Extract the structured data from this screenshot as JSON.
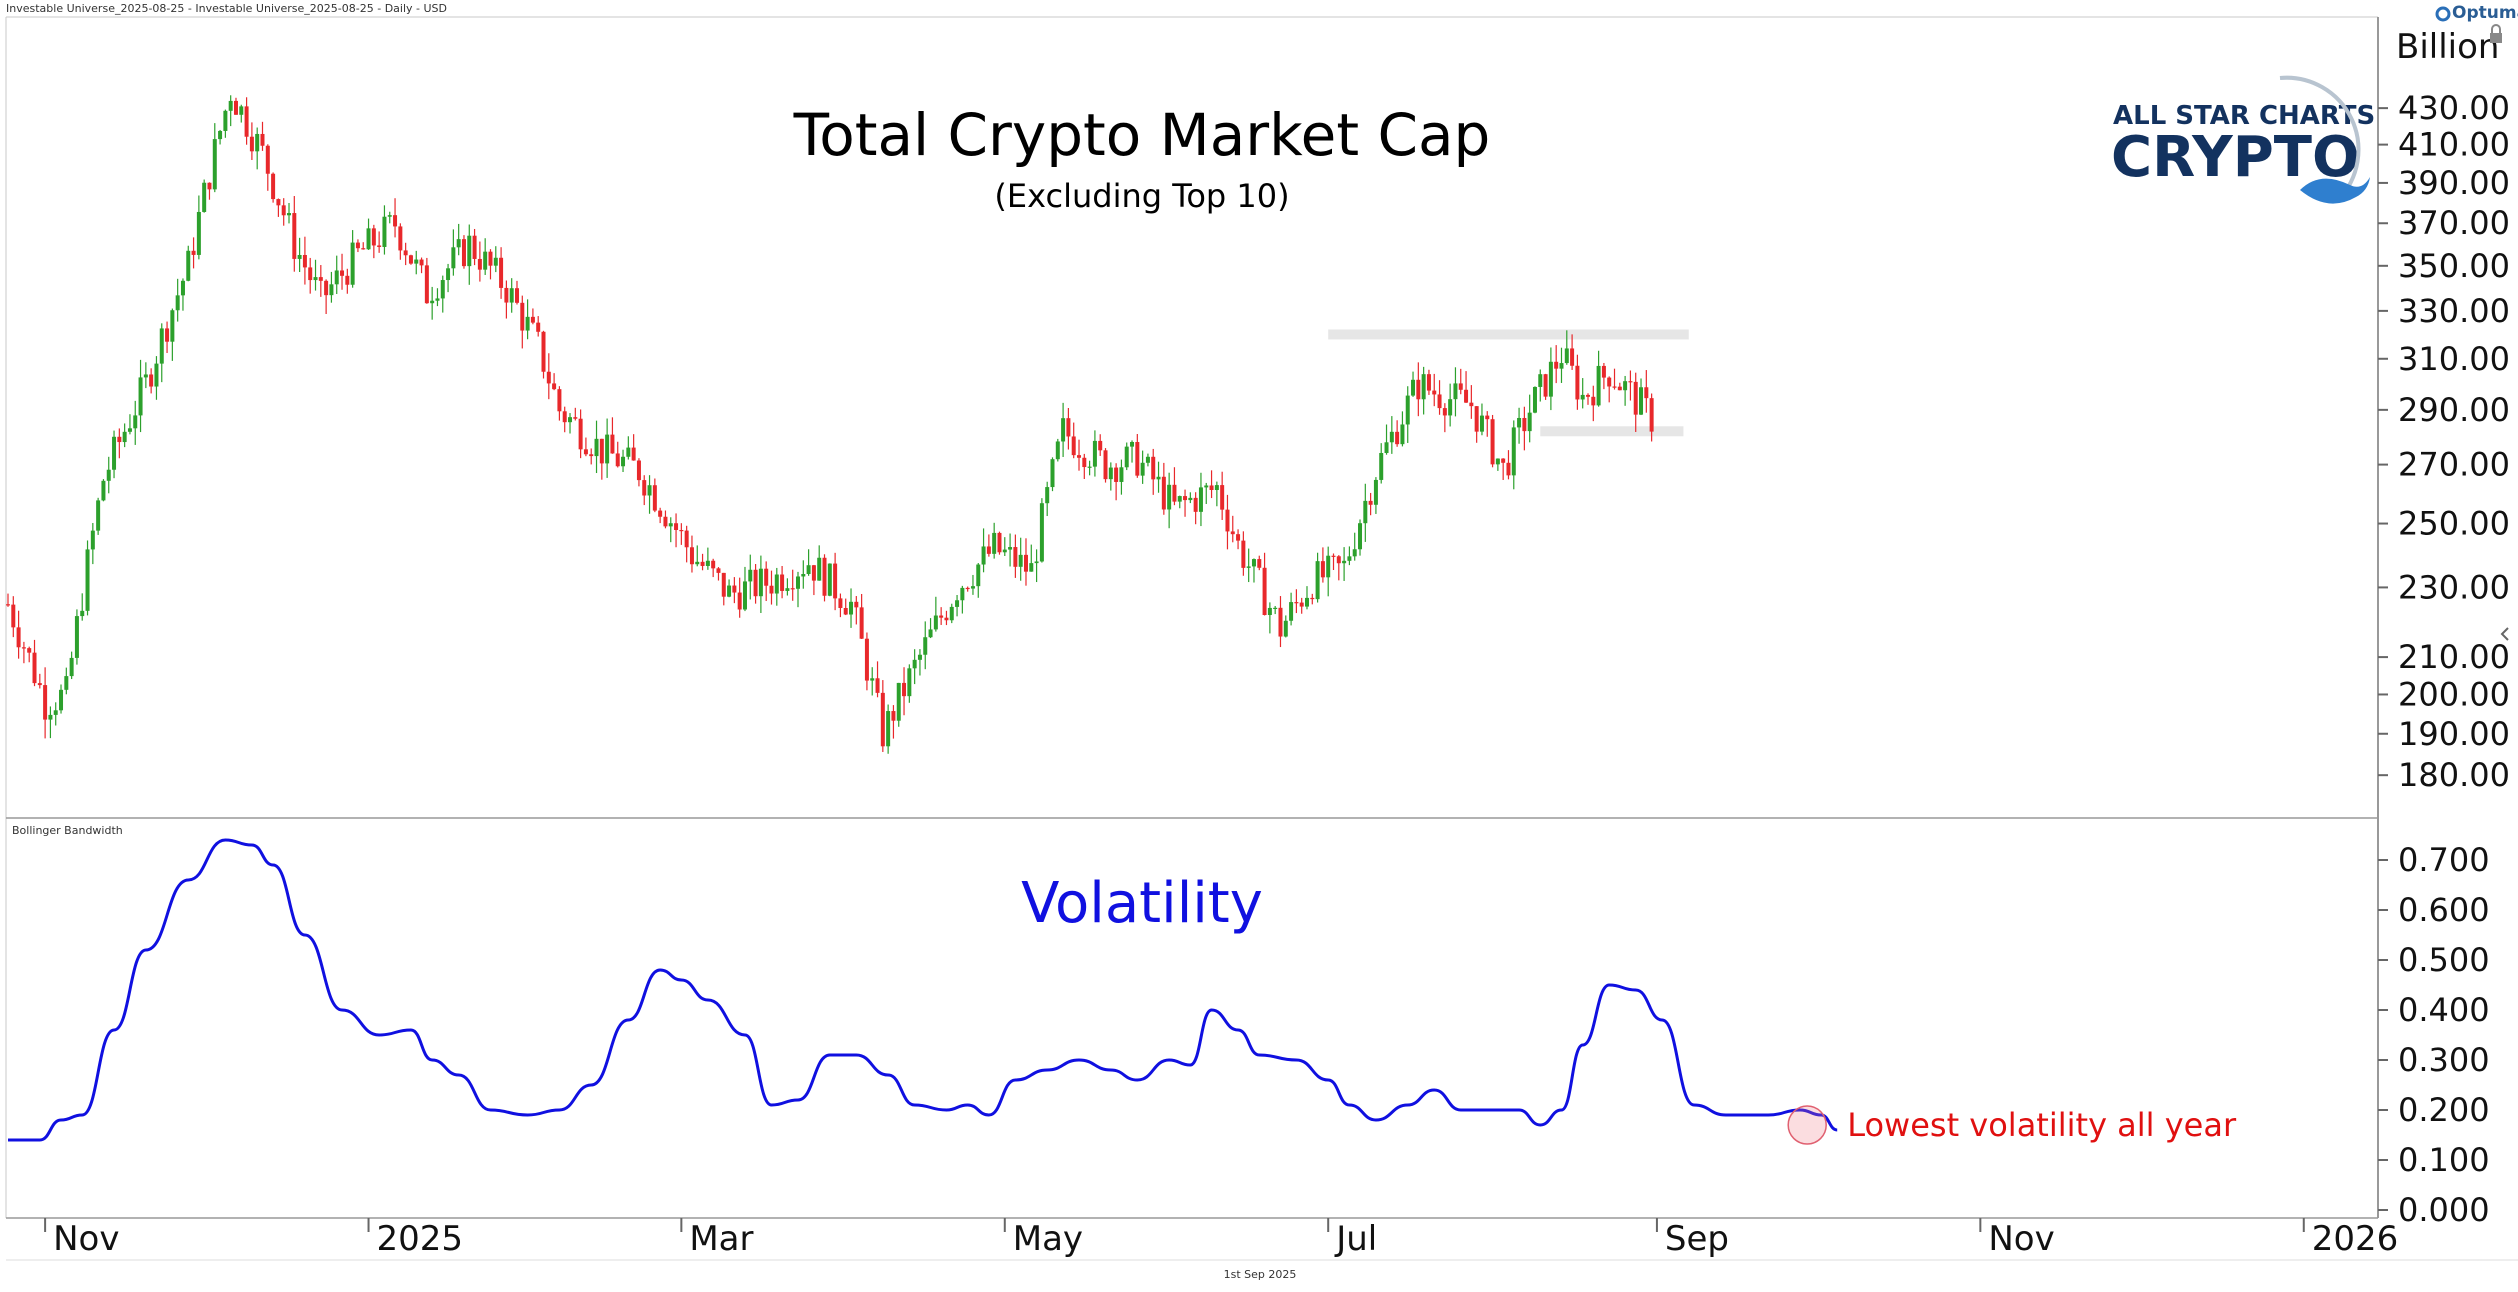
{
  "header": {
    "source_label": "Investable Universe_2025-08-25 - Investable Universe_2025-08-25 - Daily - USD",
    "brand": "Optuma",
    "unit_label": "Billion",
    "footer_date": "1st Sep 2025"
  },
  "logo": {
    "line1": "ALL STAR CHARTS",
    "line2": "CRYPTO"
  },
  "colors": {
    "up": "#2ca02c",
    "down": "#e8282b",
    "volatility_line": "#1010e0",
    "annotation": "#e01010",
    "range_band": "#e6e6e6"
  },
  "chart_data": [
    {
      "type": "candlestick",
      "title": "Total Crypto Market Cap",
      "subtitle": "(Excluding Top 10)",
      "y_unit": "Billion",
      "y_scale": "log",
      "ylim": [
        172,
        470
      ],
      "y_ticks": [
        "430.00",
        "410.00",
        "390.00",
        "370.00",
        "350.00",
        "330.00",
        "310.00",
        "290.00",
        "270.00",
        "250.00",
        "230.00",
        "210.00",
        "200.00",
        "190.00",
        "180.00"
      ],
      "x_range": [
        "2024-10-25",
        "2026-01-15"
      ],
      "x_ticks": [
        {
          "label": "Nov",
          "date": "2024-11-01"
        },
        {
          "label": "2025",
          "date": "2025-01-01"
        },
        {
          "label": "Mar",
          "date": "2025-03-01"
        },
        {
          "label": "May",
          "date": "2025-05-01"
        },
        {
          "label": "Jul",
          "date": "2025-07-01"
        },
        {
          "label": "Sep",
          "date": "2025-09-01"
        },
        {
          "label": "Nov",
          "date": "2025-11-01"
        },
        {
          "label": "2026",
          "date": "2026-01-01"
        }
      ],
      "close_anchors": [
        [
          "2024-10-25",
          225
        ],
        [
          "2024-11-01",
          198
        ],
        [
          "2024-11-05",
          200
        ],
        [
          "2024-11-12",
          265
        ],
        [
          "2024-11-20",
          300
        ],
        [
          "2024-11-28",
          350
        ],
        [
          "2024-12-06",
          440
        ],
        [
          "2024-12-12",
          405
        ],
        [
          "2024-12-18",
          360
        ],
        [
          "2024-12-23",
          335
        ],
        [
          "2024-12-30",
          355
        ],
        [
          "2025-01-06",
          370
        ],
        [
          "2025-01-12",
          338
        ],
        [
          "2025-01-20",
          360
        ],
        [
          "2025-01-27",
          340
        ],
        [
          "2025-02-02",
          315
        ],
        [
          "2025-02-06",
          290
        ],
        [
          "2025-02-14",
          275
        ],
        [
          "2025-02-21",
          268
        ],
        [
          "2025-03-03",
          240
        ],
        [
          "2025-03-10",
          228
        ],
        [
          "2025-03-18",
          232
        ],
        [
          "2025-03-25",
          238
        ],
        [
          "2025-04-02",
          225
        ],
        [
          "2025-04-08",
          190
        ],
        [
          "2025-04-15",
          210
        ],
        [
          "2025-04-22",
          230
        ],
        [
          "2025-04-29",
          242
        ],
        [
          "2025-05-06",
          235
        ],
        [
          "2025-05-12",
          282
        ],
        [
          "2025-05-20",
          270
        ],
        [
          "2025-05-26",
          272
        ],
        [
          "2025-06-02",
          255
        ],
        [
          "2025-06-10",
          262
        ],
        [
          "2025-06-14",
          243
        ],
        [
          "2025-06-22",
          218
        ],
        [
          "2025-06-28",
          232
        ],
        [
          "2025-07-04",
          236
        ],
        [
          "2025-07-10",
          268
        ],
        [
          "2025-07-18",
          300
        ],
        [
          "2025-07-23",
          295
        ],
        [
          "2025-07-28",
          292
        ],
        [
          "2025-08-03",
          268
        ],
        [
          "2025-08-08",
          290
        ],
        [
          "2025-08-14",
          312
        ],
        [
          "2025-08-18",
          295
        ],
        [
          "2025-08-23",
          305
        ],
        [
          "2025-08-28",
          294
        ],
        [
          "2025-08-31",
          287
        ]
      ],
      "range_bands": [
        {
          "value": 320,
          "from": "2025-07-01",
          "to": "2025-09-07"
        },
        {
          "value": 282,
          "from": "2025-08-10",
          "to": "2025-09-06"
        }
      ]
    },
    {
      "type": "line",
      "name": "Bollinger Bandwidth",
      "annotation_title": "Volatility",
      "ylim": [
        0.0,
        0.76
      ],
      "y_ticks": [
        "0.700",
        "0.600",
        "0.500",
        "0.400",
        "0.300",
        "0.200",
        "0.100",
        "0.000"
      ],
      "points": [
        [
          "2024-10-25",
          0.14
        ],
        [
          "2024-10-31",
          0.14
        ],
        [
          "2024-11-04",
          0.18
        ],
        [
          "2024-11-08",
          0.19
        ],
        [
          "2024-11-14",
          0.36
        ],
        [
          "2024-11-20",
          0.52
        ],
        [
          "2024-11-28",
          0.66
        ],
        [
          "2024-12-05",
          0.74
        ],
        [
          "2024-12-10",
          0.73
        ],
        [
          "2024-12-14",
          0.69
        ],
        [
          "2024-12-20",
          0.55
        ],
        [
          "2024-12-27",
          0.4
        ],
        [
          "2025-01-03",
          0.35
        ],
        [
          "2025-01-09",
          0.36
        ],
        [
          "2025-01-13",
          0.3
        ],
        [
          "2025-01-18",
          0.27
        ],
        [
          "2025-01-24",
          0.2
        ],
        [
          "2025-01-31",
          0.19
        ],
        [
          "2025-02-06",
          0.2
        ],
        [
          "2025-02-12",
          0.25
        ],
        [
          "2025-02-19",
          0.38
        ],
        [
          "2025-02-25",
          0.48
        ],
        [
          "2025-03-01",
          0.46
        ],
        [
          "2025-03-06",
          0.42
        ],
        [
          "2025-03-13",
          0.35
        ],
        [
          "2025-03-18",
          0.21
        ],
        [
          "2025-03-23",
          0.22
        ],
        [
          "2025-03-29",
          0.31
        ],
        [
          "2025-04-03",
          0.31
        ],
        [
          "2025-04-09",
          0.27
        ],
        [
          "2025-04-14",
          0.21
        ],
        [
          "2025-04-20",
          0.2
        ],
        [
          "2025-04-24",
          0.21
        ],
        [
          "2025-04-28",
          0.19
        ],
        [
          "2025-05-03",
          0.26
        ],
        [
          "2025-05-09",
          0.28
        ],
        [
          "2025-05-15",
          0.3
        ],
        [
          "2025-05-21",
          0.28
        ],
        [
          "2025-05-26",
          0.26
        ],
        [
          "2025-06-01",
          0.3
        ],
        [
          "2025-06-05",
          0.29
        ],
        [
          "2025-06-09",
          0.4
        ],
        [
          "2025-06-14",
          0.36
        ],
        [
          "2025-06-18",
          0.31
        ],
        [
          "2025-06-25",
          0.3
        ],
        [
          "2025-07-01",
          0.26
        ],
        [
          "2025-07-05",
          0.21
        ],
        [
          "2025-07-10",
          0.18
        ],
        [
          "2025-07-16",
          0.21
        ],
        [
          "2025-07-21",
          0.24
        ],
        [
          "2025-07-26",
          0.2
        ],
        [
          "2025-08-01",
          0.2
        ],
        [
          "2025-08-06",
          0.2
        ],
        [
          "2025-08-10",
          0.17
        ],
        [
          "2025-08-14",
          0.2
        ],
        [
          "2025-08-18",
          0.33
        ],
        [
          "2025-08-23",
          0.45
        ],
        [
          "2025-08-28",
          0.44
        ],
        [
          "2025-09-02",
          0.38
        ],
        [
          "2025-09-08",
          0.21
        ],
        [
          "2025-09-14",
          0.19
        ],
        [
          "2025-09-22",
          0.19
        ],
        [
          "2025-09-28",
          0.2
        ],
        [
          "2025-10-02",
          0.19
        ],
        [
          "2025-10-05",
          0.16
        ]
      ],
      "annotation": {
        "text": "Lowest volatility all year",
        "date": "2025-10-05",
        "value": 0.17
      }
    }
  ]
}
